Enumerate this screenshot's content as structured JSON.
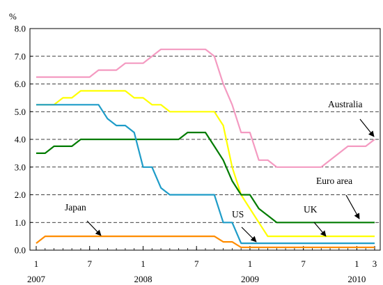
{
  "chart_data": {
    "type": "line",
    "unit_label": "%",
    "ylim": [
      0,
      8
    ],
    "y_ticks": [
      "0.0",
      "1.0",
      "2.0",
      "3.0",
      "4.0",
      "5.0",
      "6.0",
      "7.0",
      "8.0"
    ],
    "x_range": [
      "2007-01",
      "2010-03"
    ],
    "x_ticks": [
      {
        "x": "2007-01",
        "label": "1"
      },
      {
        "x": "2007-07",
        "label": "7"
      },
      {
        "x": "2008-01",
        "label": "1"
      },
      {
        "x": "2008-07",
        "label": "7"
      },
      {
        "x": "2009-01",
        "label": "1"
      },
      {
        "x": "2009-07",
        "label": "7"
      },
      {
        "x": "2010-01",
        "label": "1"
      },
      {
        "x": "2010-03",
        "label": "3"
      }
    ],
    "year_labels": [
      {
        "x": "2007-01",
        "label": "2007"
      },
      {
        "x": "2008-01",
        "label": "2008"
      },
      {
        "x": "2009-01",
        "label": "2009"
      },
      {
        "x": "2010-01",
        "label": "2010"
      }
    ],
    "grid": "horizontal dashed",
    "series": [
      {
        "name": "Australia",
        "color": "#f49ac1",
        "points": [
          [
            "2007-01",
            6.25
          ],
          [
            "2007-07",
            6.25
          ],
          [
            "2007-08",
            6.5
          ],
          [
            "2007-10",
            6.5
          ],
          [
            "2007-11",
            6.75
          ],
          [
            "2008-01",
            6.75
          ],
          [
            "2008-02",
            7.0
          ],
          [
            "2008-03",
            7.25
          ],
          [
            "2008-08",
            7.25
          ],
          [
            "2008-09",
            7.0
          ],
          [
            "2008-10",
            6.0
          ],
          [
            "2008-11",
            5.25
          ],
          [
            "2008-12",
            4.25
          ],
          [
            "2009-01",
            4.25
          ],
          [
            "2009-02",
            3.25
          ],
          [
            "2009-03",
            3.25
          ],
          [
            "2009-04",
            3.0
          ],
          [
            "2009-09",
            3.0
          ],
          [
            "2009-10",
            3.25
          ],
          [
            "2009-11",
            3.5
          ],
          [
            "2009-12",
            3.75
          ],
          [
            "2010-02",
            3.75
          ],
          [
            "2010-03",
            4.0
          ]
        ]
      },
      {
        "name": "Euro area",
        "color": "#ffff00",
        "points": [
          [
            "2007-01",
            5.25
          ],
          [
            "2007-03",
            5.25
          ],
          [
            "2007-04",
            5.5
          ],
          [
            "2007-05",
            5.5
          ],
          [
            "2007-06",
            5.75
          ],
          [
            "2007-11",
            5.75
          ],
          [
            "2007-12",
            5.5
          ],
          [
            "2008-01",
            5.5
          ],
          [
            "2008-02",
            5.25
          ],
          [
            "2008-03",
            5.25
          ],
          [
            "2008-04",
            5.0
          ],
          [
            "2008-09",
            5.0
          ],
          [
            "2008-10",
            4.5
          ],
          [
            "2008-11",
            3.0
          ],
          [
            "2008-12",
            2.0
          ],
          [
            "2009-01",
            1.5
          ],
          [
            "2009-02",
            1.0
          ],
          [
            "2009-03",
            0.5
          ],
          [
            "2010-03",
            0.5
          ]
        ]
      },
      {
        "name": "UK",
        "color": "#007b00",
        "points": [
          [
            "2007-01",
            3.5
          ],
          [
            "2007-02",
            3.5
          ],
          [
            "2007-03",
            3.75
          ],
          [
            "2007-05",
            3.75
          ],
          [
            "2007-06",
            4.0
          ],
          [
            "2008-05",
            4.0
          ],
          [
            "2008-06",
            4.25
          ],
          [
            "2008-08",
            4.25
          ],
          [
            "2008-09",
            3.75
          ],
          [
            "2008-10",
            3.25
          ],
          [
            "2008-11",
            2.5
          ],
          [
            "2008-12",
            2.0
          ],
          [
            "2009-01",
            2.0
          ],
          [
            "2009-02",
            1.5
          ],
          [
            "2009-03",
            1.25
          ],
          [
            "2009-04",
            1.0
          ],
          [
            "2010-03",
            1.0
          ]
        ]
      },
      {
        "name": "US",
        "color": "#1e9cc8",
        "points": [
          [
            "2007-01",
            5.25
          ],
          [
            "2007-08",
            5.25
          ],
          [
            "2007-09",
            4.75
          ],
          [
            "2007-10",
            4.5
          ],
          [
            "2007-11",
            4.5
          ],
          [
            "2007-12",
            4.25
          ],
          [
            "2008-01",
            3.0
          ],
          [
            "2008-02",
            3.0
          ],
          [
            "2008-03",
            2.25
          ],
          [
            "2008-04",
            2.0
          ],
          [
            "2008-09",
            2.0
          ],
          [
            "2008-10",
            1.0
          ],
          [
            "2008-11",
            1.0
          ],
          [
            "2008-12",
            0.25
          ],
          [
            "2010-03",
            0.25
          ]
        ]
      },
      {
        "name": "Japan",
        "color": "#ff8c00",
        "points": [
          [
            "2007-01",
            0.25
          ],
          [
            "2007-02",
            0.5
          ],
          [
            "2008-09",
            0.5
          ],
          [
            "2008-10",
            0.3
          ],
          [
            "2008-11",
            0.3
          ],
          [
            "2008-12",
            0.1
          ],
          [
            "2010-03",
            0.1
          ]
        ]
      }
    ],
    "annotations": [
      {
        "series": "Australia",
        "text": "Australia"
      },
      {
        "series": "Euro area",
        "text": "Euro area"
      },
      {
        "series": "UK",
        "text": "UK"
      },
      {
        "series": "US",
        "text": "US"
      },
      {
        "series": "Japan",
        "text": "Japan"
      }
    ]
  }
}
